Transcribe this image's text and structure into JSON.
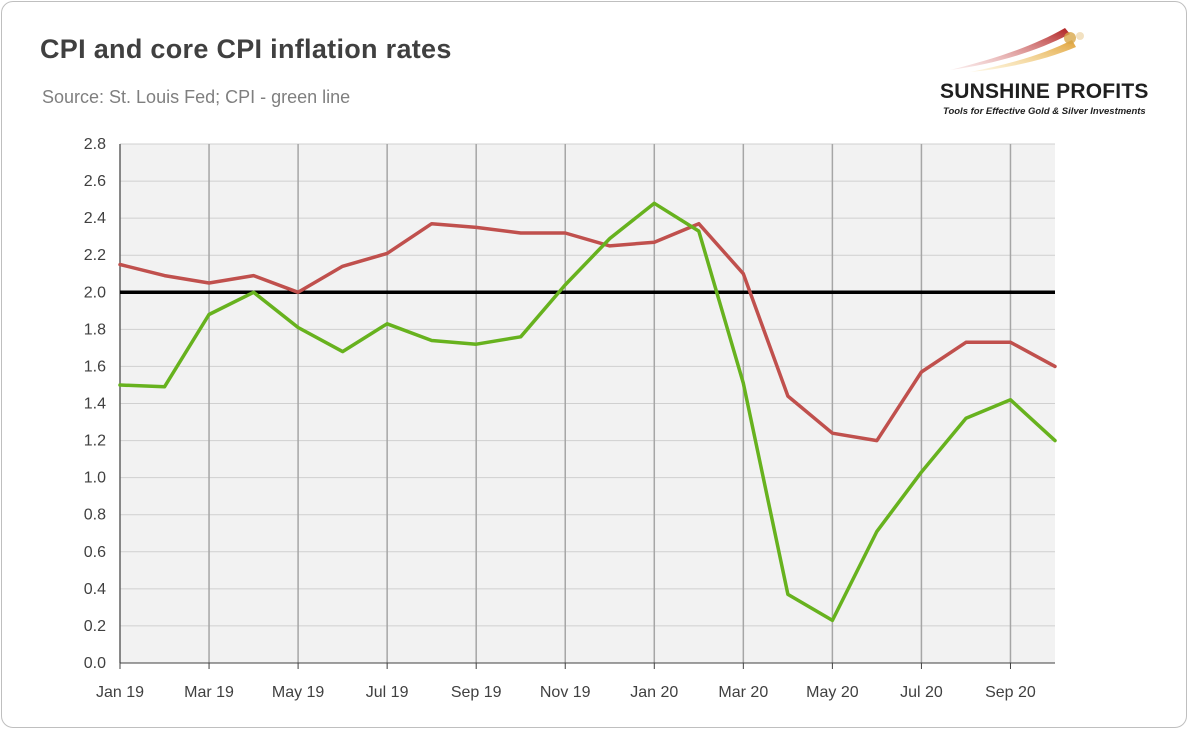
{
  "title": "CPI and core CPI inflation rates",
  "subtitle": "Source: St. Louis Fed; CPI - green line",
  "logo": {
    "name": "SUNSHINE PROFITS",
    "tagline": "Tools for Effective Gold & Silver Investments"
  },
  "chart_data": {
    "type": "line",
    "x_tick_labels": [
      "Jan 19",
      "Mar 19",
      "May 19",
      "Jul 19",
      "Sep 19",
      "Nov 19",
      "Jan 20",
      "Mar 20",
      "May 20",
      "Jul 20",
      "Sep 20"
    ],
    "x": [
      "Jan 19",
      "Feb 19",
      "Mar 19",
      "Apr 19",
      "May 19",
      "Jun 19",
      "Jul 19",
      "Aug 19",
      "Sep 19",
      "Oct 19",
      "Nov 19",
      "Dec 19",
      "Jan 20",
      "Feb 20",
      "Mar 20",
      "Apr 20",
      "May 20",
      "Jun 20",
      "Jul 20",
      "Aug 20",
      "Sep 20",
      "Oct 20"
    ],
    "series": [
      {
        "color": "#67b21e",
        "values": [
          1.5,
          1.49,
          1.88,
          2.0,
          1.81,
          1.68,
          1.83,
          1.74,
          1.72,
          1.76,
          2.04,
          2.29,
          2.48,
          2.33,
          1.51,
          0.37,
          0.23,
          0.71,
          1.03,
          1.32,
          1.42,
          1.2
        ]
      },
      {
        "color": "#c0504d",
        "values": [
          2.15,
          2.09,
          2.05,
          2.09,
          2.0,
          2.14,
          2.21,
          2.37,
          2.35,
          2.32,
          2.32,
          2.25,
          2.27,
          2.37,
          2.1,
          1.44,
          1.24,
          1.2,
          1.57,
          1.73,
          1.73,
          1.6
        ]
      }
    ],
    "reference_line": {
      "y": 2.0,
      "color": "#000000"
    },
    "y_ticks": [
      "0.0",
      "0.2",
      "0.4",
      "0.6",
      "0.8",
      "1.0",
      "1.2",
      "1.4",
      "1.6",
      "1.8",
      "2.0",
      "2.2",
      "2.4",
      "2.6",
      "2.8"
    ],
    "ylim": [
      0,
      2.8
    ],
    "grid": true
  }
}
